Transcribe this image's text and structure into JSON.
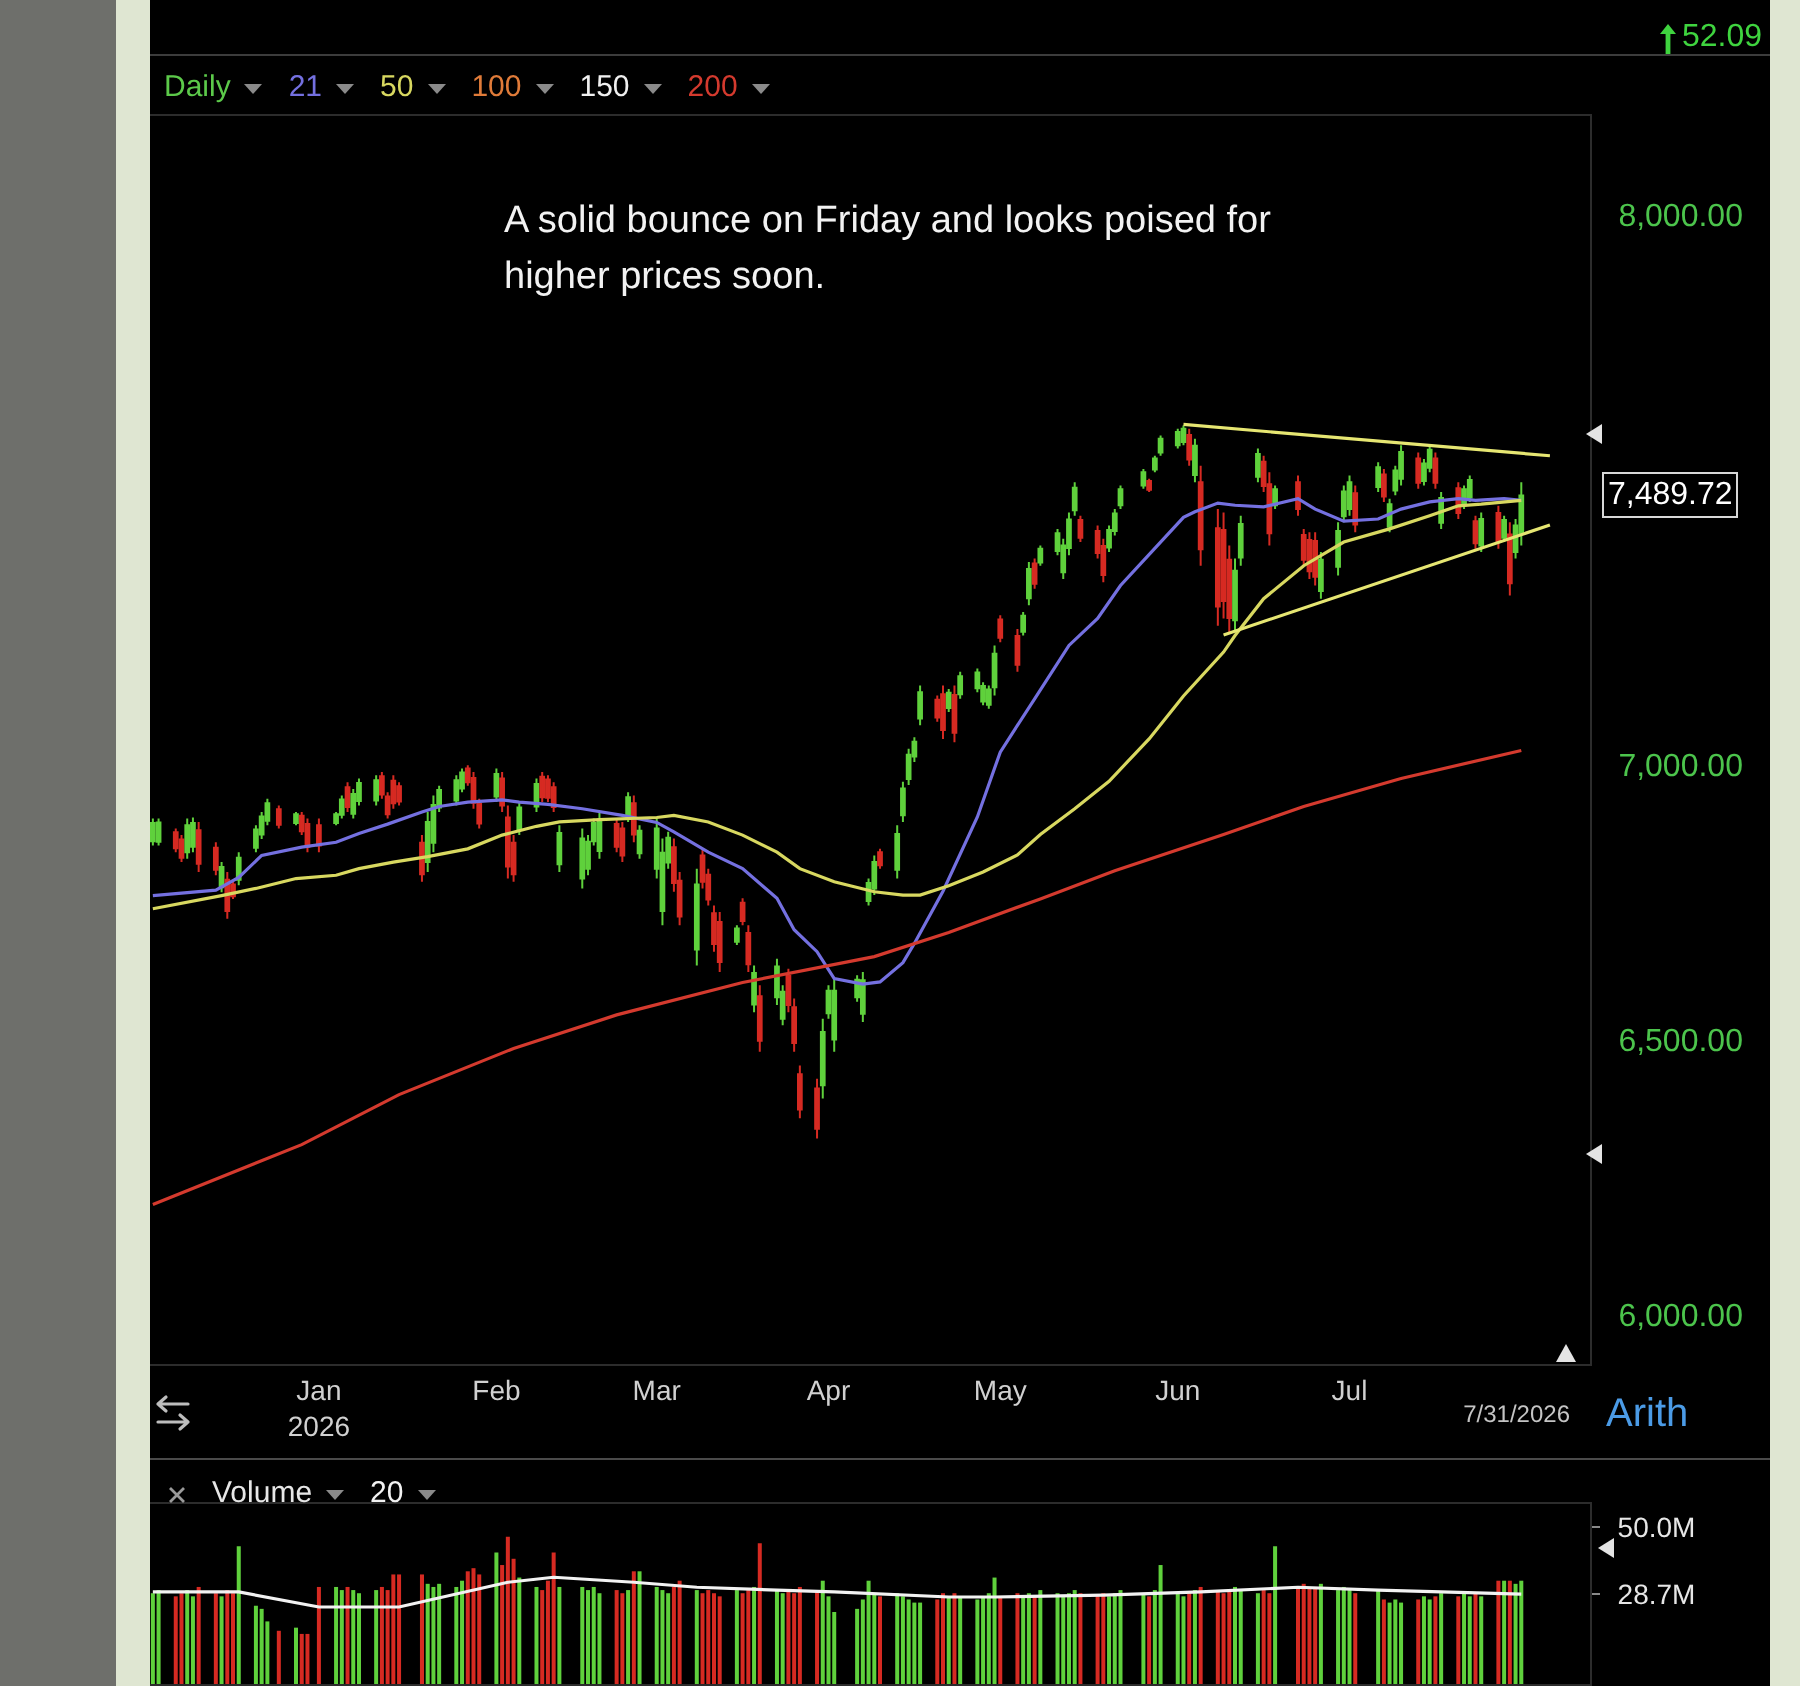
{
  "chart_data": [
    {
      "type": "candlestick",
      "title": "Daily",
      "legend": "top left",
      "x": [
        "2025-12-04",
        "2025-12-05",
        "2025-12-08",
        "2025-12-09",
        "2025-12-10",
        "2025-12-11",
        "2025-12-12",
        "2025-12-15",
        "2025-12-16",
        "2025-12-17",
        "2025-12-18",
        "2025-12-19",
        "2025-12-22",
        "2025-12-23",
        "2025-12-24",
        "2025-12-26",
        "2025-12-29",
        "2025-12-30",
        "2025-12-31",
        "2026-01-02",
        "2026-01-05",
        "2026-01-06",
        "2026-01-07",
        "2026-01-08",
        "2026-01-09",
        "2026-01-12",
        "2026-01-13",
        "2026-01-14",
        "2026-01-15",
        "2026-01-16",
        "2026-01-20",
        "2026-01-21",
        "2026-01-22",
        "2026-01-23",
        "2026-01-26",
        "2026-01-27",
        "2026-01-28",
        "2026-01-29",
        "2026-01-30",
        "2026-02-02",
        "2026-02-03",
        "2026-02-04",
        "2026-02-05",
        "2026-02-06",
        "2026-02-09",
        "2026-02-10",
        "2026-02-11",
        "2026-02-12",
        "2026-02-13",
        "2026-02-17",
        "2026-02-18",
        "2026-02-19",
        "2026-02-20",
        "2026-02-23",
        "2026-02-24",
        "2026-02-25",
        "2026-02-26",
        "2026-02-27",
        "2026-03-02",
        "2026-03-03",
        "2026-03-04",
        "2026-03-05",
        "2026-03-06",
        "2026-03-09",
        "2026-03-10",
        "2026-03-11",
        "2026-03-12",
        "2026-03-13",
        "2026-03-16",
        "2026-03-17",
        "2026-03-18",
        "2026-03-19",
        "2026-03-20",
        "2026-03-23",
        "2026-03-24",
        "2026-03-25",
        "2026-03-26",
        "2026-03-27",
        "2026-03-30",
        "2026-03-31",
        "2026-04-01",
        "2026-04-02",
        "2026-04-06",
        "2026-04-07",
        "2026-04-08",
        "2026-04-09",
        "2026-04-10",
        "2026-04-13",
        "2026-04-14",
        "2026-04-15",
        "2026-04-16",
        "2026-04-17",
        "2026-04-20",
        "2026-04-21",
        "2026-04-22",
        "2026-04-23",
        "2026-04-24",
        "2026-04-27",
        "2026-04-28",
        "2026-04-29",
        "2026-04-30",
        "2026-05-01",
        "2026-05-04",
        "2026-05-05",
        "2026-05-06",
        "2026-05-07",
        "2026-05-08",
        "2026-05-11",
        "2026-05-12",
        "2026-05-13",
        "2026-05-14",
        "2026-05-15",
        "2026-05-18",
        "2026-05-19",
        "2026-05-20",
        "2026-05-21",
        "2026-05-22",
        "2026-05-26",
        "2026-05-27",
        "2026-05-28",
        "2026-05-29",
        "2026-06-01",
        "2026-06-02",
        "2026-06-03",
        "2026-06-04",
        "2026-06-05",
        "2026-06-08",
        "2026-06-09",
        "2026-06-10",
        "2026-06-11",
        "2026-06-12",
        "2026-06-15",
        "2026-06-16",
        "2026-06-17",
        "2026-06-18",
        "2026-06-22",
        "2026-06-23",
        "2026-06-24",
        "2026-06-25",
        "2026-06-26",
        "2026-06-29",
        "2026-06-30",
        "2026-07-01",
        "2026-07-02",
        "2026-07-06",
        "2026-07-07",
        "2026-07-08",
        "2026-07-09",
        "2026-07-10",
        "2026-07-13",
        "2026-07-14",
        "2026-07-15",
        "2026-07-16",
        "2026-07-17",
        "2026-07-20",
        "2026-07-21",
        "2026-07-22",
        "2026-07-23",
        "2026-07-24",
        "2026-07-27",
        "2026-07-28",
        "2026-07-29",
        "2026-07-30",
        "2026-07-31"
      ],
      "ohlc": [
        [
          6861,
          6902,
          6853,
          6894
        ],
        [
          6860,
          6902,
          6853,
          6895
        ],
        [
          6877,
          6884,
          6841,
          6848
        ],
        [
          6864,
          6872,
          6823,
          6831
        ],
        [
          6841,
          6902,
          6829,
          6890
        ],
        [
          6851,
          6904,
          6841,
          6894
        ],
        [
          6881,
          6896,
          6805,
          6820
        ],
        [
          6849,
          6859,
          6799,
          6809
        ],
        [
          6777,
          6823,
          6768,
          6814
        ],
        [
          6791,
          6805,
          6720,
          6734
        ],
        [
          6782,
          6787,
          6756,
          6761
        ],
        [
          6791,
          6841,
          6781,
          6831
        ],
        [
          6849,
          6890,
          6841,
          6882
        ],
        [
          6873,
          6914,
          6865,
          6906
        ],
        [
          6898,
          6938,
          6890,
          6930
        ],
        [
          6919,
          6926,
          6884,
          6891
        ],
        [
          6894,
          6914,
          6890,
          6910
        ],
        [
          6907,
          6914,
          6872,
          6879
        ],
        [
          6892,
          6902,
          6841,
          6851
        ],
        [
          6890,
          6902,
          6841,
          6853
        ],
        [
          6894,
          6914,
          6890,
          6910
        ],
        [
          6909,
          6944,
          6902,
          6937
        ],
        [
          6959,
          6968,
          6914,
          6923
        ],
        [
          6911,
          6956,
          6902,
          6947
        ],
        [
          6934,
          6975,
          6926,
          6967
        ],
        [
          6935,
          6981,
          6926,
          6972
        ],
        [
          6979,
          6987,
          6938,
          6946
        ],
        [
          6942,
          6950,
          6902,
          6910
        ],
        [
          6971,
          6981,
          6920,
          6930
        ],
        [
          6961,
          6968,
          6926,
          6933
        ],
        [
          6858,
          6872,
          6787,
          6801
        ],
        [
          6823,
          6914,
          6805,
          6896
        ],
        [
          6858,
          6944,
          6841,
          6927
        ],
        [
          6922,
          6962,
          6914,
          6954
        ],
        [
          6935,
          6981,
          6926,
          6972
        ],
        [
          6957,
          6993,
          6950,
          6986
        ],
        [
          6993,
          6999,
          6962,
          6968
        ],
        [
          6976,
          6987,
          6920,
          6931
        ],
        [
          6929,
          6938,
          6884,
          6893
        ],
        [
          6942,
          6993,
          6932,
          6983
        ],
        [
          6975,
          6987,
          6914,
          6926
        ],
        [
          6904,
          6926,
          6793,
          6815
        ],
        [
          6858,
          6872,
          6787,
          6801
        ],
        [
          6882,
          6932,
          6872,
          6922
        ],
        [
          6924,
          6975,
          6914,
          6965
        ],
        [
          6978,
          6987,
          6932,
          6941
        ],
        [
          6973,
          6981,
          6932,
          6940
        ],
        [
          6959,
          6968,
          6914,
          6923
        ],
        [
          6819,
          6890,
          6805,
          6876
        ],
        [
          6793,
          6884,
          6775,
          6866
        ],
        [
          6811,
          6872,
          6799,
          6860
        ],
        [
          6861,
          6902,
          6853,
          6894
        ],
        [
          6843,
          6914,
          6829,
          6900
        ],
        [
          6892,
          6902,
          6841,
          6851
        ],
        [
          6884,
          6896,
          6823,
          6835
        ],
        [
          6905,
          6950,
          6896,
          6941
        ],
        [
          6930,
          6944,
          6859,
          6873
        ],
        [
          6839,
          6890,
          6829,
          6880
        ],
        [
          6811,
          6902,
          6793,
          6884
        ],
        [
          6734,
          6866,
          6708,
          6840
        ],
        [
          6822,
          6878,
          6811,
          6867
        ],
        [
          6850,
          6866,
          6769,
          6785
        ],
        [
          6789,
          6805,
          6708,
          6724
        ],
        [
          6664,
          6811,
          6635,
          6782
        ],
        [
          6835,
          6847,
          6775,
          6787
        ],
        [
          6800,
          6811,
          6744,
          6755
        ],
        [
          6730,
          6744,
          6660,
          6674
        ],
        [
          6714,
          6732,
          6623,
          6641
        ],
        [
          6678,
          6708,
          6672,
          6702
        ],
        [
          6749,
          6757,
          6708,
          6716
        ],
        [
          6694,
          6708,
          6623,
          6637
        ],
        [
          6564,
          6635,
          6550,
          6621
        ],
        [
          6579,
          6599,
          6478,
          6498
        ],
        [
          6577,
          6647,
          6563,
          6633
        ],
        [
          6538,
          6599,
          6526,
          6587
        ],
        [
          6616,
          6629,
          6550,
          6563
        ],
        [
          6559,
          6575,
          6478,
          6494
        ],
        [
          6437,
          6453,
          6357,
          6373
        ],
        [
          6411,
          6429,
          6320,
          6338
        ],
        [
          6417,
          6538,
          6393,
          6514
        ],
        [
          6548,
          6599,
          6538,
          6589
        ],
        [
          6500,
          6611,
          6478,
          6589
        ],
        [
          6577,
          6617,
          6569,
          6609
        ],
        [
          6547,
          6623,
          6532,
          6608
        ],
        [
          6752,
          6793,
          6744,
          6785
        ],
        [
          6775,
          6835,
          6763,
          6823
        ],
        [
          6841,
          6847,
          6811,
          6817
        ],
        [
          6809,
          6890,
          6793,
          6874
        ],
        [
          6908,
          6969,
          6896,
          6957
        ],
        [
          6974,
          7029,
          6963,
          7018
        ],
        [
          7015,
          7050,
          7005,
          7042
        ],
        [
          7084,
          7144,
          7072,
          7132
        ],
        [
          7118,
          7126,
          7078,
          7086
        ],
        [
          7128,
          7144,
          7047,
          7063
        ],
        [
          7103,
          7138,
          7096,
          7131
        ],
        [
          7127,
          7144,
          7041,
          7058
        ],
        [
          7128,
          7169,
          7120,
          7161
        ],
        [
          7139,
          7175,
          7132,
          7168
        ],
        [
          7115,
          7150,
          7108,
          7143
        ],
        [
          7109,
          7144,
          7102,
          7137
        ],
        [
          7141,
          7217,
          7126,
          7202
        ],
        [
          7264,
          7272,
          7223,
          7231
        ],
        [
          7234,
          7247,
          7169,
          7182
        ],
        [
          7242,
          7278,
          7235,
          7271
        ],
        [
          7303,
          7369,
          7290,
          7356
        ],
        [
          7366,
          7375,
          7320,
          7329
        ],
        [
          7368,
          7399,
          7362,
          7393
        ],
        [
          7389,
          7429,
          7381,
          7421
        ],
        [
          7350,
          7411,
          7338,
          7399
        ],
        [
          7394,
          7459,
          7381,
          7446
        ],
        [
          7463,
          7514,
          7453,
          7504
        ],
        [
          7445,
          7453,
          7405,
          7413
        ],
        [
          7425,
          7435,
          7375,
          7385
        ],
        [
          7398,
          7411,
          7332,
          7345
        ],
        [
          7395,
          7435,
          7387,
          7427
        ],
        [
          7425,
          7465,
          7417,
          7457
        ],
        [
          7472,
          7508,
          7465,
          7501
        ],
        [
          7508,
          7538,
          7502,
          7532
        ],
        [
          7516,
          7520,
          7496,
          7500
        ],
        [
          7537,
          7562,
          7532,
          7557
        ],
        [
          7568,
          7599,
          7562,
          7593
        ],
        [
          7581,
          7611,
          7575,
          7605
        ],
        [
          7587,
          7617,
          7581,
          7611
        ],
        [
          7600,
          7611,
          7544,
          7555
        ],
        [
          7527,
          7593,
          7514,
          7580
        ],
        [
          7514,
          7544,
          7362,
          7392
        ],
        [
          7430,
          7465,
          7253,
          7288
        ],
        [
          7427,
          7459,
          7266,
          7298
        ],
        [
          7373,
          7399,
          7241,
          7267
        ],
        [
          7263,
          7375,
          7241,
          7353
        ],
        [
          7377,
          7453,
          7362,
          7438
        ],
        [
          7524,
          7575,
          7514,
          7565
        ],
        [
          7551,
          7562,
          7496,
          7507
        ],
        [
          7510,
          7532,
          7399,
          7421
        ],
        [
          7472,
          7508,
          7465,
          7501
        ],
        [
          7514,
          7526,
          7453,
          7465
        ],
        [
          7418,
          7429,
          7362,
          7373
        ],
        [
          7409,
          7423,
          7338,
          7352
        ],
        [
          7407,
          7423,
          7326,
          7342
        ],
        [
          7316,
          7387,
          7302,
          7373
        ],
        [
          7360,
          7441,
          7344,
          7425
        ],
        [
          7452,
          7508,
          7441,
          7497
        ],
        [
          7465,
          7526,
          7453,
          7514
        ],
        [
          7494,
          7508,
          7423,
          7437
        ],
        [
          7505,
          7550,
          7496,
          7541
        ],
        [
          7528,
          7538,
          7478,
          7488
        ],
        [
          7433,
          7484,
          7423,
          7474
        ],
        [
          7499,
          7544,
          7490,
          7535
        ],
        [
          7520,
          7581,
          7508,
          7569
        ],
        [
          7557,
          7568,
          7502,
          7513
        ],
        [
          7516,
          7556,
          7508,
          7548
        ],
        [
          7540,
          7581,
          7532,
          7573
        ],
        [
          7557,
          7568,
          7502,
          7513
        ],
        [
          7440,
          7496,
          7429,
          7485
        ],
        [
          7503,
          7514,
          7447,
          7458
        ],
        [
          7472,
          7508,
          7465,
          7501
        ],
        [
          7486,
          7526,
          7478,
          7518
        ],
        [
          7443,
          7453,
          7393,
          7403
        ],
        [
          7399,
          7459,
          7387,
          7447
        ],
        [
          7458,
          7471,
          7393,
          7406
        ],
        [
          7413,
          7453,
          7405,
          7445
        ],
        [
          7419,
          7441,
          7308,
          7330
        ],
        [
          7387,
          7447,
          7375,
          7435
        ],
        [
          7420,
          7514,
          7399,
          7489.72
        ]
      ],
      "colors": [
        "#5fd13c",
        "#5fd13c",
        "#d62a22",
        "#d62a22",
        "#5fd13c",
        "#5fd13c",
        "#d62a22",
        "#d62a22",
        "#5fd13c",
        "#d62a22",
        "#d62a22",
        "#5fd13c",
        "#5fd13c",
        "#5fd13c",
        "#5fd13c",
        "#d62a22",
        "#5fd13c",
        "#d62a22",
        "#d62a22",
        "#d62a22",
        "#5fd13c",
        "#5fd13c",
        "#d62a22",
        "#5fd13c",
        "#5fd13c",
        "#5fd13c",
        "#d62a22",
        "#d62a22",
        "#d62a22",
        "#d62a22",
        "#d62a22",
        "#5fd13c",
        "#5fd13c",
        "#5fd13c",
        "#5fd13c",
        "#5fd13c",
        "#d62a22",
        "#d62a22",
        "#d62a22",
        "#5fd13c",
        "#d62a22",
        "#d62a22",
        "#d62a22",
        "#5fd13c",
        "#5fd13c",
        "#d62a22",
        "#d62a22",
        "#d62a22",
        "#5fd13c",
        "#5fd13c",
        "#5fd13c",
        "#5fd13c",
        "#5fd13c",
        "#d62a22",
        "#d62a22",
        "#5fd13c",
        "#d62a22",
        "#5fd13c",
        "#5fd13c",
        "#5fd13c",
        "#5fd13c",
        "#d62a22",
        "#d62a22",
        "#5fd13c",
        "#d62a22",
        "#d62a22",
        "#d62a22",
        "#d62a22",
        "#5fd13c",
        "#d62a22",
        "#d62a22",
        "#5fd13c",
        "#d62a22",
        "#5fd13c",
        "#5fd13c",
        "#d62a22",
        "#d62a22",
        "#d62a22",
        "#d62a22",
        "#5fd13c",
        "#5fd13c",
        "#5fd13c",
        "#5fd13c",
        "#5fd13c",
        "#5fd13c",
        "#5fd13c",
        "#d62a22",
        "#5fd13c",
        "#5fd13c",
        "#5fd13c",
        "#5fd13c",
        "#5fd13c",
        "#d62a22",
        "#d62a22",
        "#5fd13c",
        "#d62a22",
        "#5fd13c",
        "#5fd13c",
        "#5fd13c",
        "#5fd13c",
        "#5fd13c",
        "#d62a22",
        "#d62a22",
        "#5fd13c",
        "#5fd13c",
        "#d62a22",
        "#5fd13c",
        "#5fd13c",
        "#5fd13c",
        "#5fd13c",
        "#5fd13c",
        "#d62a22",
        "#d62a22",
        "#d62a22",
        "#5fd13c",
        "#5fd13c",
        "#5fd13c",
        "#5fd13c",
        "#d62a22",
        "#5fd13c",
        "#5fd13c",
        "#5fd13c",
        "#5fd13c",
        "#d62a22",
        "#5fd13c",
        "#d62a22",
        "#d62a22",
        "#d62a22",
        "#d62a22",
        "#5fd13c",
        "#5fd13c",
        "#5fd13c",
        "#d62a22",
        "#d62a22",
        "#5fd13c",
        "#d62a22",
        "#d62a22",
        "#d62a22",
        "#d62a22",
        "#5fd13c",
        "#5fd13c",
        "#5fd13c",
        "#5fd13c",
        "#d62a22",
        "#5fd13c",
        "#d62a22",
        "#5fd13c",
        "#5fd13c",
        "#5fd13c",
        "#d62a22",
        "#5fd13c",
        "#5fd13c",
        "#d62a22",
        "#5fd13c",
        "#d62a22",
        "#5fd13c",
        "#5fd13c",
        "#d62a22",
        "#5fd13c",
        "#d62a22",
        "#5fd13c",
        "#d62a22",
        "#5fd13c",
        "#5fd13c"
      ],
      "series": [
        {
          "name": "21",
          "type": "line",
          "color": "#7470e0",
          "x": [
            "2025-12-04",
            "2025-12-15",
            "2025-12-19",
            "2025-12-23",
            "2025-12-30",
            "2026-01-05",
            "2026-01-09",
            "2026-01-14",
            "2026-01-20",
            "2026-01-23",
            "2026-01-28",
            "2026-02-03",
            "2026-02-06",
            "2026-02-11",
            "2026-02-17",
            "2026-02-24",
            "2026-03-02",
            "2026-03-05",
            "2026-03-11",
            "2026-03-17",
            "2026-03-23",
            "2026-03-26",
            "2026-03-30",
            "2026-04-02",
            "2026-04-07",
            "2026-04-10",
            "2026-04-14",
            "2026-04-16",
            "2026-04-21",
            "2026-04-27",
            "2026-05-01",
            "2026-05-07",
            "2026-05-13",
            "2026-05-18",
            "2026-05-22",
            "2026-05-29",
            "2026-06-02",
            "2026-06-04",
            "2026-06-08",
            "2026-06-11",
            "2026-06-16",
            "2026-06-22",
            "2026-06-25",
            "2026-06-30",
            "2026-07-06",
            "2026-07-10",
            "2026-07-15",
            "2026-07-20",
            "2026-07-23",
            "2026-07-28",
            "2026-07-31"
          ],
          "values": [
            6762,
            6772,
            6795,
            6835,
            6850,
            6859,
            6875,
            6892,
            6914,
            6924,
            6932,
            6936,
            6932,
            6928,
            6920,
            6908,
            6895,
            6878,
            6841,
            6811,
            6757,
            6700,
            6660,
            6611,
            6601,
            6605,
            6640,
            6675,
            6770,
            6905,
            7023,
            7120,
            7217,
            7266,
            7326,
            7405,
            7450,
            7460,
            7476,
            7472,
            7469,
            7484,
            7465,
            7443,
            7447,
            7465,
            7478,
            7484,
            7481,
            7484,
            7481
          ]
        },
        {
          "name": "50",
          "type": "line",
          "color": "#d8d860",
          "x": [
            "2025-12-04",
            "2025-12-16",
            "2025-12-22",
            "2025-12-29",
            "2026-01-05",
            "2026-01-09",
            "2026-01-15",
            "2026-01-21",
            "2026-01-28",
            "2026-02-03",
            "2026-02-09",
            "2026-02-13",
            "2026-02-20",
            "2026-03-02",
            "2026-03-05",
            "2026-03-11",
            "2026-03-17",
            "2026-03-23",
            "2026-03-27",
            "2026-04-02",
            "2026-04-09",
            "2026-04-14",
            "2026-04-17",
            "2026-04-22",
            "2026-04-28",
            "2026-05-04",
            "2026-05-08",
            "2026-05-14",
            "2026-05-20",
            "2026-05-27",
            "2026-06-02",
            "2026-06-09",
            "2026-06-11",
            "2026-06-16",
            "2026-06-23",
            "2026-06-30",
            "2026-07-08",
            "2026-07-15",
            "2026-07-20",
            "2026-07-24",
            "2026-07-31"
          ],
          "values": [
            6738,
            6762,
            6775,
            6793,
            6799,
            6811,
            6823,
            6833,
            6847,
            6872,
            6888,
            6896,
            6900,
            6904,
            6908,
            6896,
            6872,
            6841,
            6811,
            6787,
            6769,
            6763,
            6763,
            6780,
            6805,
            6836,
            6873,
            6920,
            6970,
            7047,
            7125,
            7205,
            7235,
            7302,
            7362,
            7405,
            7429,
            7453,
            7471,
            7474,
            7481
          ]
        },
        {
          "name": "200",
          "type": "line",
          "color": "#d43a2e",
          "x": [
            "2025-12-04",
            "2025-12-30",
            "2026-01-16",
            "2026-02-05",
            "2026-02-23",
            "2026-03-17",
            "2026-04-09",
            "2026-04-22",
            "2026-05-08",
            "2026-05-21",
            "2026-06-09",
            "2026-06-23",
            "2026-07-10",
            "2026-07-31"
          ],
          "values": [
            6200,
            6309,
            6400,
            6484,
            6545,
            6604,
            6651,
            6695,
            6756,
            6807,
            6873,
            6924,
            6975,
            7026
          ]
        },
        {
          "type": "line",
          "color": "#e6e672",
          "x": [
            "2026-06-02",
            "2026-08-05"
          ],
          "values": [
            7619,
            7562
          ]
        },
        {
          "type": "line",
          "color": "#e6e672",
          "x": [
            "2026-06-09",
            "2026-08-05"
          ],
          "values": [
            7236,
            7436
          ]
        }
      ],
      "xlim": [
        "2025-12-03T12:00",
        "2026-08-12"
      ],
      "xticks": [
        {
          "value": "2026-01-02",
          "label": "Jan\n2026"
        },
        {
          "value": "2026-02-02",
          "label": "Feb"
        },
        {
          "value": "2026-03-02",
          "label": "Mar"
        },
        {
          "value": "2026-04-01",
          "label": "Apr"
        },
        {
          "value": "2026-05-01",
          "label": "May"
        },
        {
          "value": "2026-06-01",
          "label": "Jun"
        },
        {
          "value": "2026-07-01",
          "label": "Jul"
        }
      ],
      "ylim": [
        5910,
        8180
      ],
      "yticks": [
        {
          "value": 6000,
          "label": "6,000.00"
        },
        {
          "value": 6500,
          "label": "6,500.00"
        },
        {
          "value": 7000,
          "label": "7,000.00"
        },
        {
          "value": 8000,
          "label": "8,000.00"
        }
      ],
      "annotations": [
        "A solid bounce on Friday and looks poised for higher prices soon.",
        {
          "text": "7,489.72",
          "x": "2026-07-31",
          "y": 7489.72
        },
        "7/31/2026",
        "Arith",
        "52.09",
        "100",
        "150"
      ]
    },
    {
      "type": "bar",
      "title": "Volume",
      "legend": "top left",
      "tick_labels": "y",
      "x": [
        "2025-12-04",
        "2025-12-05",
        "2025-12-08",
        "2025-12-09",
        "2025-12-10",
        "2025-12-11",
        "2025-12-12",
        "2025-12-15",
        "2025-12-16",
        "2025-12-17",
        "2025-12-18",
        "2025-12-19",
        "2025-12-22",
        "2025-12-23",
        "2025-12-24",
        "2025-12-26",
        "2025-12-29",
        "2025-12-30",
        "2025-12-31",
        "2026-01-02",
        "2026-01-05",
        "2026-01-06",
        "2026-01-07",
        "2026-01-08",
        "2026-01-09",
        "2026-01-12",
        "2026-01-13",
        "2026-01-14",
        "2026-01-15",
        "2026-01-16",
        "2026-01-20",
        "2026-01-21",
        "2026-01-22",
        "2026-01-23",
        "2026-01-26",
        "2026-01-27",
        "2026-01-28",
        "2026-01-29",
        "2026-01-30",
        "2026-02-02",
        "2026-02-03",
        "2026-02-04",
        "2026-02-05",
        "2026-02-06",
        "2026-02-09",
        "2026-02-10",
        "2026-02-11",
        "2026-02-12",
        "2026-02-13",
        "2026-02-17",
        "2026-02-18",
        "2026-02-19",
        "2026-02-20",
        "2026-02-23",
        "2026-02-24",
        "2026-02-25",
        "2026-02-26",
        "2026-02-27",
        "2026-03-02",
        "2026-03-03",
        "2026-03-04",
        "2026-03-05",
        "2026-03-06",
        "2026-03-09",
        "2026-03-10",
        "2026-03-11",
        "2026-03-12",
        "2026-03-13",
        "2026-03-16",
        "2026-03-17",
        "2026-03-18",
        "2026-03-19",
        "2026-03-20",
        "2026-03-23",
        "2026-03-24",
        "2026-03-25",
        "2026-03-26",
        "2026-03-27",
        "2026-03-30",
        "2026-03-31",
        "2026-04-01",
        "2026-04-02",
        "2026-04-06",
        "2026-04-07",
        "2026-04-08",
        "2026-04-09",
        "2026-04-10",
        "2026-04-13",
        "2026-04-14",
        "2026-04-15",
        "2026-04-16",
        "2026-04-17",
        "2026-04-20",
        "2026-04-21",
        "2026-04-22",
        "2026-04-23",
        "2026-04-24",
        "2026-04-27",
        "2026-04-28",
        "2026-04-29",
        "2026-04-30",
        "2026-05-01",
        "2026-05-04",
        "2026-05-05",
        "2026-05-06",
        "2026-05-07",
        "2026-05-08",
        "2026-05-11",
        "2026-05-12",
        "2026-05-13",
        "2026-05-14",
        "2026-05-15",
        "2026-05-18",
        "2026-05-19",
        "2026-05-20",
        "2026-05-21",
        "2026-05-22",
        "2026-05-26",
        "2026-05-27",
        "2026-05-28",
        "2026-05-29",
        "2026-06-01",
        "2026-06-02",
        "2026-06-03",
        "2026-06-04",
        "2026-06-05",
        "2026-06-08",
        "2026-06-09",
        "2026-06-10",
        "2026-06-11",
        "2026-06-12",
        "2026-06-15",
        "2026-06-16",
        "2026-06-17",
        "2026-06-18",
        "2026-06-22",
        "2026-06-23",
        "2026-06-24",
        "2026-06-25",
        "2026-06-26",
        "2026-06-29",
        "2026-06-30",
        "2026-07-01",
        "2026-07-02",
        "2026-07-06",
        "2026-07-07",
        "2026-07-08",
        "2026-07-09",
        "2026-07-10",
        "2026-07-13",
        "2026-07-14",
        "2026-07-15",
        "2026-07-16",
        "2026-07-17",
        "2026-07-20",
        "2026-07-21",
        "2026-07-22",
        "2026-07-23",
        "2026-07-24",
        "2026-07-27",
        "2026-07-28",
        "2026-07-29",
        "2026-07-30",
        "2026-07-31"
      ],
      "series": [
        {
          "colors": [
            "#5fd13c",
            "#5fd13c",
            "#d62a22",
            "#d62a22",
            "#5fd13c",
            "#5fd13c",
            "#d62a22",
            "#d62a22",
            "#5fd13c",
            "#d62a22",
            "#d62a22",
            "#5fd13c",
            "#5fd13c",
            "#5fd13c",
            "#5fd13c",
            "#d62a22",
            "#5fd13c",
            "#d62a22",
            "#d62a22",
            "#d62a22",
            "#5fd13c",
            "#5fd13c",
            "#d62a22",
            "#5fd13c",
            "#5fd13c",
            "#5fd13c",
            "#d62a22",
            "#d62a22",
            "#d62a22",
            "#d62a22",
            "#d62a22",
            "#5fd13c",
            "#5fd13c",
            "#5fd13c",
            "#5fd13c",
            "#5fd13c",
            "#d62a22",
            "#d62a22",
            "#d62a22",
            "#5fd13c",
            "#d62a22",
            "#d62a22",
            "#d62a22",
            "#5fd13c",
            "#5fd13c",
            "#d62a22",
            "#d62a22",
            "#d62a22",
            "#5fd13c",
            "#5fd13c",
            "#5fd13c",
            "#5fd13c",
            "#5fd13c",
            "#d62a22",
            "#d62a22",
            "#5fd13c",
            "#d62a22",
            "#5fd13c",
            "#5fd13c",
            "#5fd13c",
            "#5fd13c",
            "#d62a22",
            "#d62a22",
            "#5fd13c",
            "#d62a22",
            "#d62a22",
            "#d62a22",
            "#d62a22",
            "#5fd13c",
            "#d62a22",
            "#d62a22",
            "#5fd13c",
            "#d62a22",
            "#5fd13c",
            "#5fd13c",
            "#d62a22",
            "#d62a22",
            "#d62a22",
            "#d62a22",
            "#5fd13c",
            "#5fd13c",
            "#5fd13c",
            "#5fd13c",
            "#5fd13c",
            "#5fd13c",
            "#5fd13c",
            "#d62a22",
            "#5fd13c",
            "#5fd13c",
            "#5fd13c",
            "#5fd13c",
            "#5fd13c",
            "#d62a22",
            "#d62a22",
            "#5fd13c",
            "#d62a22",
            "#5fd13c",
            "#5fd13c",
            "#5fd13c",
            "#5fd13c",
            "#5fd13c",
            "#d62a22",
            "#d62a22",
            "#5fd13c",
            "#5fd13c",
            "#d62a22",
            "#5fd13c",
            "#5fd13c",
            "#5fd13c",
            "#5fd13c",
            "#5fd13c",
            "#d62a22",
            "#d62a22",
            "#d62a22",
            "#5fd13c",
            "#5fd13c",
            "#5fd13c",
            "#5fd13c",
            "#d62a22",
            "#5fd13c",
            "#5fd13c",
            "#5fd13c",
            "#5fd13c",
            "#d62a22",
            "#5fd13c",
            "#d62a22",
            "#d62a22",
            "#d62a22",
            "#d62a22",
            "#5fd13c",
            "#5fd13c",
            "#5fd13c",
            "#d62a22",
            "#d62a22",
            "#5fd13c",
            "#d62a22",
            "#d62a22",
            "#d62a22",
            "#d62a22",
            "#5fd13c",
            "#5fd13c",
            "#5fd13c",
            "#5fd13c",
            "#d62a22",
            "#5fd13c",
            "#d62a22",
            "#5fd13c",
            "#5fd13c",
            "#5fd13c",
            "#d62a22",
            "#5fd13c",
            "#5fd13c",
            "#d62a22",
            "#5fd13c",
            "#d62a22",
            "#5fd13c",
            "#5fd13c",
            "#d62a22",
            "#5fd13c",
            "#d62a22",
            "#5fd13c",
            "#d62a22",
            "#5fd13c",
            "#5fd13c"
          ],
          "values": [
            29,
            30,
            28,
            29,
            30,
            28,
            31,
            29,
            28,
            30,
            29,
            44,
            25,
            24,
            20,
            17,
            18,
            16,
            16,
            31,
            31,
            30,
            31,
            30,
            29,
            30,
            31,
            30,
            35,
            35,
            35,
            32,
            31,
            32,
            31,
            33,
            36,
            37,
            35,
            42,
            38,
            47,
            40,
            34,
            31,
            30,
            33,
            42,
            31,
            31,
            30,
            31,
            29,
            30,
            29,
            30,
            36,
            36,
            31,
            30,
            29,
            31,
            33,
            30,
            29,
            30,
            29,
            28,
            30,
            29,
            30,
            31,
            45,
            30,
            29,
            30,
            29,
            31,
            30,
            33,
            28,
            23,
            24,
            27,
            33,
            29,
            28,
            29,
            28,
            27,
            26,
            26,
            27,
            29,
            28,
            29,
            28,
            27,
            28,
            29,
            34,
            28,
            29,
            28,
            29,
            28,
            30,
            29,
            28,
            29,
            30,
            29,
            28,
            29,
            28,
            29,
            30,
            29,
            28,
            30,
            38,
            29,
            28,
            29,
            30,
            31,
            30,
            29,
            30,
            31,
            30,
            29,
            30,
            29,
            44,
            31,
            32,
            31,
            31,
            32,
            30,
            31,
            30,
            29,
            30,
            27,
            26,
            27,
            26,
            27,
            28,
            27,
            28,
            29,
            28,
            29,
            28,
            29,
            28,
            33,
            33,
            33,
            32,
            33
          ]
        },
        {
          "name": "20",
          "type": "line",
          "color": "#f2f2f2",
          "x": [
            "2025-12-04",
            "2025-12-19",
            "2026-01-02",
            "2026-01-16",
            "2026-02-04",
            "2026-02-12",
            "2026-02-26",
            "2026-03-09",
            "2026-03-23",
            "2026-04-02",
            "2026-04-22",
            "2026-04-30",
            "2026-05-19",
            "2026-06-05",
            "2026-06-22",
            "2026-07-06",
            "2026-07-17",
            "2026-07-31"
          ],
          "values": [
            29.4,
            29.4,
            24.6,
            24.6,
            32.5,
            34.1,
            32.5,
            30.9,
            30,
            29.4,
            27.8,
            27.8,
            28.4,
            29.4,
            30.9,
            30,
            29.4,
            28.7
          ]
        }
      ],
      "xlim": [
        "2025-12-03T12:00",
        "2026-08-12"
      ],
      "ylim": [
        0,
        57.5
      ],
      "yticks": [
        {
          "value": 28.7,
          "label": "28.7M"
        },
        {
          "value": 50,
          "label": "50.0M"
        }
      ]
    }
  ]
}
